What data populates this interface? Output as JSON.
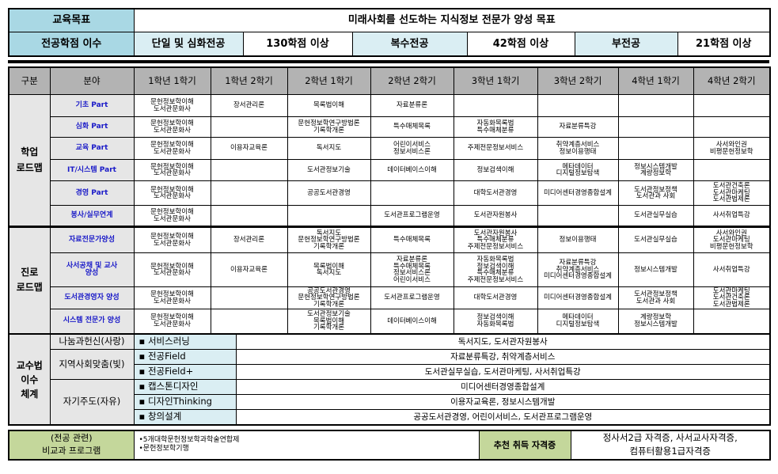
{
  "goal": {
    "label": "교육목표",
    "text": "미래사회를 선도하는 지식정보 전문가 양성 목표"
  },
  "credits": {
    "label": "전공학점 이수",
    "items": [
      {
        "name": "단일 및 심화전공",
        "value": "130학점 이상"
      },
      {
        "name": "복수전공",
        "value": "42학점 이상"
      },
      {
        "name": "부전공",
        "value": "21학점 이상"
      }
    ]
  },
  "roadmap": {
    "headers": [
      "구분",
      "분야",
      "1학년 1학기",
      "1학년 2학기",
      "2학년 1학기",
      "2학년 2학기",
      "3학년 1학기",
      "3학년 2학기",
      "4학년 1학기",
      "4학년 2학기"
    ],
    "groups": [
      {
        "label": "학업\n로드맵",
        "rows": [
          {
            "field": "기초 Part",
            "cells": [
              "문헌정보학이해\n도서관문화사",
              "장서관리론",
              "목록법이해",
              "자료분류론",
              "",
              "",
              "",
              ""
            ]
          },
          {
            "field": "심화 Part",
            "cells": [
              "문헌정보학이해\n도서관문화사",
              "",
              "문헌정보학연구방법론\n기록학개론",
              "특수매체목록",
              "자동화목록법\n특수매체분류",
              "자료분류특강",
              "",
              ""
            ]
          },
          {
            "field": "교육 Part",
            "cells": [
              "문헌정보학이해\n도서관문화사",
              "이용자교육론",
              "독서지도",
              "어린이서비스\n정보서비스론",
              "주제전문정보서비스",
              "취약계층서비스\n정보이용행태",
              "",
              "사서와인권\n비평문헌정보학"
            ]
          },
          {
            "field": "IT/시스템 Part",
            "cells": [
              "문헌정보학이해\n도서관문화사",
              "",
              "도서관정보기술",
              "데이터베이스이해",
              "정보검색이해",
              "메타데이터\n디지털정보탐색",
              "정보시스템개발\n계량정보학",
              ""
            ]
          },
          {
            "field": "경영 Part",
            "cells": [
              "문헌정보학이해\n도서관문화사",
              "",
              "공공도서관경영",
              "",
              "대학도서관경영",
              "미디어센터경영종합설계",
              "도서관정보정책\n도서관과 사회",
              "도서관건축론\n도서관마케팅\n도서관법제론"
            ]
          },
          {
            "field": "봉사/실무연계",
            "cells": [
              "문헌정보학이해\n도서관문화사",
              "",
              "",
              "도서관프로그램운영",
              "도서관자원봉사",
              "",
              "도서관실무실습",
              "사서취업특강"
            ]
          }
        ]
      },
      {
        "label": "진로\n로드맵",
        "rows": [
          {
            "field": "자료전문가양성",
            "cells": [
              "문헌정보학이해\n도서관문화사",
              "장서관리론",
              "독서지도\n문헌정보학연구방법론\n기록학개론",
              "특수매체목록",
              "도서관자원봉사\n특수매체분류\n주제전문정보서비스",
              "정보이용행태",
              "도서관실무실습",
              "사서와인권\n도서관마케팅\n비평문헌정보학"
            ]
          },
          {
            "field": "사서공채 및 교사\n양성",
            "cells": [
              "문헌정보학이해\n도서관문화사",
              "이용자교육론",
              "목록법이해\n독서지도",
              "자료분류론\n특수매체목록\n정보서비스론\n어린이서비스",
              "자동화목록법\n정보검색이해\n특수매체분류\n주제전문정보서비스",
              "자료분류특강\n취약계층서비스\n미디어센터경영종합설계",
              "정보시스템개발",
              "사서취업특강"
            ]
          },
          {
            "field": "도서관경영자 양성",
            "cells": [
              "문헌정보학이해\n도서관문화사",
              "",
              "공공도서관경영\n문헌정보학연구방법론\n기록학개론",
              "도서관프로그램운영",
              "대학도서관경영",
              "미디어센터경영종합설계",
              "도서관정보정책\n도서관과 사회",
              "도서관마케팅\n도서관건축론\n도서관법제론"
            ]
          },
          {
            "field": "시스템 전문가 양성",
            "cells": [
              "문헌정보학이해\n도서관문화사",
              "",
              "도서관정보기술\n목록법이해\n기록학개론",
              "데이터베이스이해",
              "정보검색이해\n자동화목록법",
              "메타데이터\n디지털정보탐색",
              "계량정보학\n정보시스템개발",
              ""
            ]
          }
        ]
      }
    ]
  },
  "teaching": {
    "label": "교수법\n이수\n체계",
    "categories": [
      {
        "name": "나눔과헌신(사랑)",
        "items": [
          {
            "method": "▪ 서비스러닝",
            "courses": "독서지도, 도서관자원봉사"
          }
        ]
      },
      {
        "name": "지역사회맞춤(빛)",
        "items": [
          {
            "method": "▪ 전공Field",
            "courses": "자료분류특강, 취약계층서비스"
          },
          {
            "method": "▪ 전공Field+",
            "courses": "도서관실무실습, 도서관마케팅, 사서취업특강"
          }
        ]
      },
      {
        "name": "자기주도(자유)",
        "items": [
          {
            "method": "▪ 캡스톤디자인",
            "courses": "미디어센터경영종합설계"
          },
          {
            "method": "▪ 디자인Thinking",
            "courses": "이용자교육론, 정보시스템개발"
          },
          {
            "method": "▪ 창의설계",
            "courses": "공공도서관경영, 어린이서비스, 도서관프로그램운영"
          }
        ]
      }
    ]
  },
  "extra": {
    "label": "(전공 관련)\n비교과 프로그램",
    "programs": "•5개대학문헌정보학과학술연합제\n•문헌정보학기행",
    "cert_label": "추천 취득 자격증",
    "certs": "정사서2급 자격증, 사서교사자격증,\n컴퓨터활용1급자격증"
  },
  "colors": {
    "header_teal": "#a9d8e4",
    "light_teal": "#daeef3",
    "header_gray": "#b3b3b3",
    "label_gray": "#e6e6e6",
    "field_blue": "#1a1ac8",
    "green": "#c4d79b"
  }
}
